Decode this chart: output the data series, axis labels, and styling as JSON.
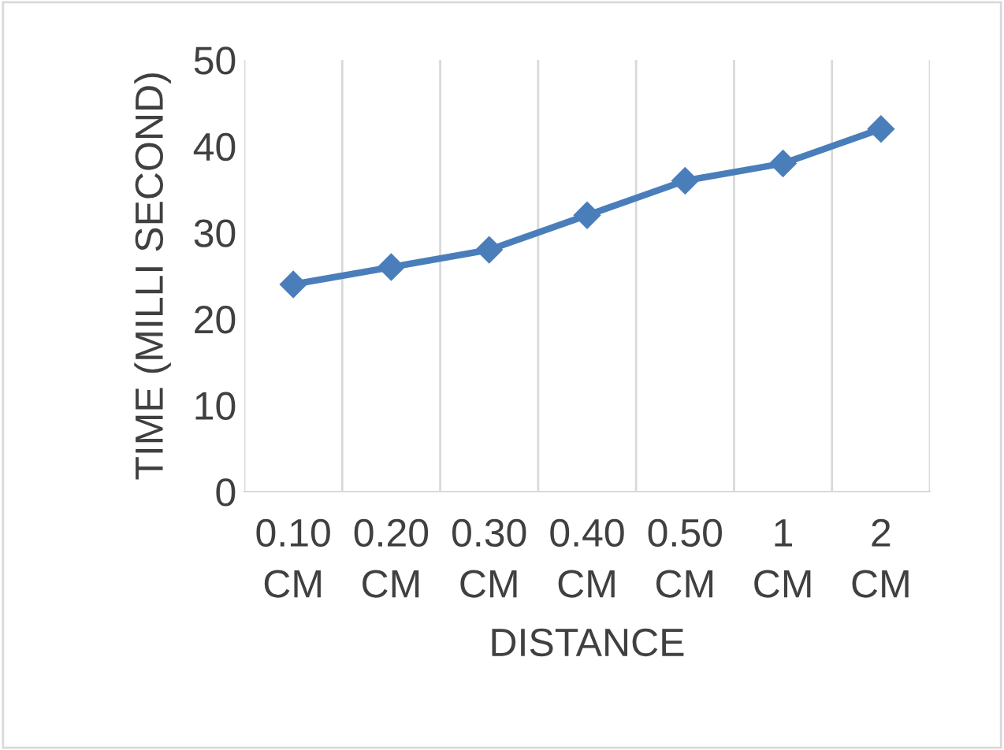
{
  "chart_data": {
    "type": "line",
    "xlabel": "DISTANCE",
    "ylabel": "TIME (MILLI SECOND)",
    "categories": [
      "0.10\nCM",
      "0.20\nCM",
      "0.30\nCM",
      "0.40\nCM",
      "0.50\nCM",
      "1\nCM",
      "2\nCM"
    ],
    "series": [
      {
        "color": "#4a7ebb",
        "values": [
          24,
          26,
          28,
          32,
          36,
          38,
          42
        ]
      }
    ],
    "ylim": [
      0,
      50
    ],
    "yticks": [
      0,
      10,
      20,
      30,
      40,
      50
    ],
    "grid": "x",
    "marker": "diamond",
    "line_style": "solid",
    "legend": false
  }
}
